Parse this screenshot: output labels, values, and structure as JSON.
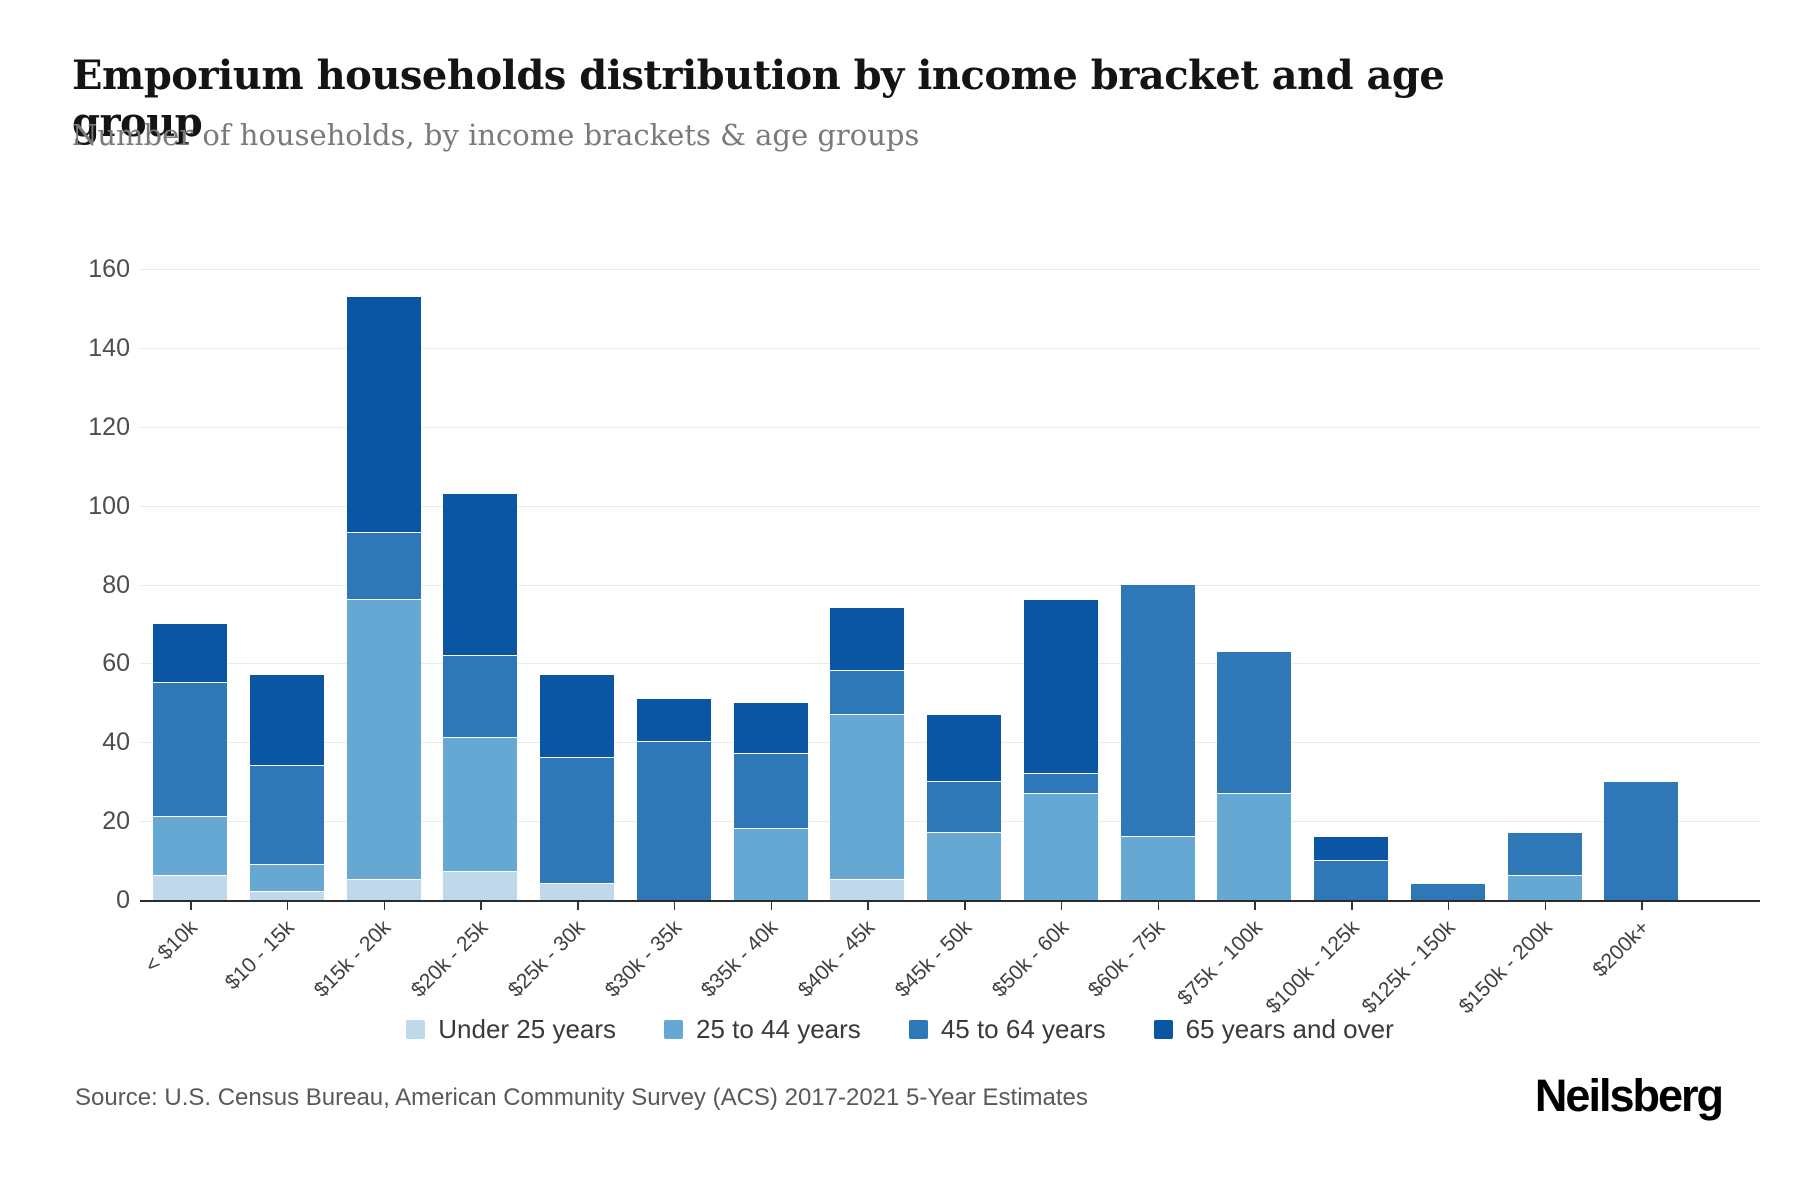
{
  "header": {
    "title": "Emporium households distribution by income bracket and age group",
    "subtitle": "Number of households, by income brackets & age groups"
  },
  "chart_data": {
    "type": "bar",
    "stacked": true,
    "title": "Emporium households distribution by income bracket and age group",
    "subtitle": "Number of households, by income brackets & age groups",
    "categories": [
      "< $10k",
      "$10 - 15k",
      "$15k - 20k",
      "$20k - 25k",
      "$25k - 30k",
      "$30k - 35k",
      "$35k - 40k",
      "$40k - 45k",
      "$45k - 50k",
      "$50k - 60k",
      "$60k - 75k",
      "$75k - 100k",
      "$100k - 125k",
      "$125k - 150k",
      "$150k - 200k",
      "$200k+"
    ],
    "series": [
      {
        "name": "Under 25 years",
        "color": "#bfd8ea",
        "values": [
          6,
          2,
          5,
          7,
          4,
          0,
          0,
          5,
          0,
          0,
          0,
          0,
          0,
          0,
          0,
          0
        ]
      },
      {
        "name": "25 to 44 years",
        "color": "#64a8d3",
        "values": [
          15,
          7,
          71,
          34,
          0,
          0,
          18,
          42,
          17,
          27,
          16,
          27,
          0,
          0,
          6,
          0
        ]
      },
      {
        "name": "45 to 64 years",
        "color": "#2e78b8",
        "values": [
          34,
          25,
          17,
          21,
          32,
          40,
          19,
          11,
          13,
          5,
          64,
          36,
          10,
          4,
          11,
          30
        ]
      },
      {
        "name": "65 years and over",
        "color": "#0b56a4",
        "values": [
          15,
          23,
          60,
          41,
          21,
          11,
          13,
          16,
          17,
          44,
          0,
          0,
          6,
          0,
          0,
          0
        ]
      }
    ],
    "totals": [
      70,
      57,
      153,
      103,
      57,
      51,
      50,
      74,
      47,
      76,
      80,
      63,
      16,
      4,
      17,
      30
    ],
    "ylim": [
      0,
      160
    ],
    "y_ticks": [
      0,
      20,
      40,
      60,
      80,
      100,
      120,
      140,
      160
    ],
    "grid": "horizontal",
    "legend_position": "bottom"
  },
  "footer": {
    "source": "Source: U.S. Census Bureau, American Community Survey (ACS) 2017-2021 5-Year Estimates",
    "logo": "Neilsberg"
  }
}
